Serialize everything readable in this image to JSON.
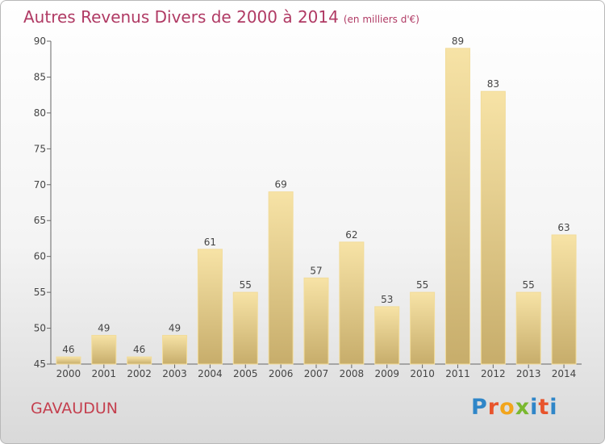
{
  "title": {
    "main": "Autres Revenus Divers de 2000 à 2014",
    "sub": "(en milliers d'€)"
  },
  "commune": "GAVAUDUN",
  "logo": {
    "text": "Proxiti"
  },
  "colors": {
    "bar_light": "#f7e3a6",
    "bar_dark": "#c7ad6b",
    "title": "#b03a64",
    "commune": "#c43f4e"
  },
  "chart_data": {
    "type": "bar",
    "title": "Autres Revenus Divers de 2000 à 2014",
    "subtitle": "(en milliers d'€)",
    "categories": [
      "2000",
      "2001",
      "2002",
      "2003",
      "2004",
      "2005",
      "2006",
      "2007",
      "2008",
      "2009",
      "2010",
      "2011",
      "2012",
      "2013",
      "2014"
    ],
    "values": [
      46,
      49,
      46,
      49,
      61,
      55,
      69,
      57,
      62,
      53,
      55,
      89,
      83,
      55,
      63
    ],
    "ylim": [
      45,
      90
    ],
    "yticks": [
      45,
      50,
      55,
      60,
      65,
      70,
      75,
      80,
      85,
      90
    ],
    "grid": false,
    "data_labels": true
  }
}
